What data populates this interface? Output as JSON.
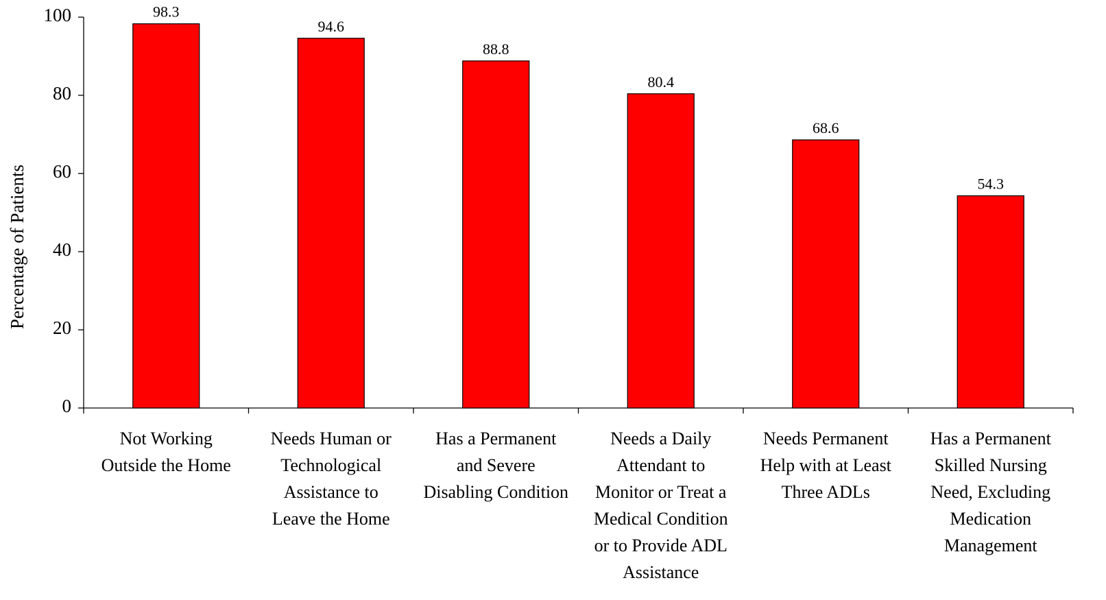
{
  "chart_data": {
    "type": "bar",
    "y_label": "Percentage of Patients",
    "categories": [
      [
        "Not Working",
        "Outside the Home"
      ],
      [
        "Needs Human or",
        "Technological",
        "Assistance to",
        "Leave the Home"
      ],
      [
        "Has a Permanent",
        "and Severe",
        "Disabling Condition"
      ],
      [
        "Needs a Daily",
        "Attendant to",
        "Monitor or Treat a",
        "Medical Condition",
        "or to Provide ADL",
        "Assistance"
      ],
      [
        "Needs Permanent",
        "Help with at Least",
        "Three ADLs"
      ],
      [
        "Has a Permanent",
        "Skilled Nursing",
        "Need, Excluding",
        "Medication",
        "Management"
      ]
    ],
    "values": [
      98.3,
      94.6,
      88.8,
      80.4,
      68.6,
      54.3
    ],
    "value_labels": [
      "98.3",
      "94.6",
      "88.8",
      "80.4",
      "68.6",
      "54.3"
    ],
    "color": "#ff0000",
    "ylim": [
      0,
      100
    ],
    "yticks": [
      0,
      20,
      40,
      60,
      80,
      100
    ]
  }
}
